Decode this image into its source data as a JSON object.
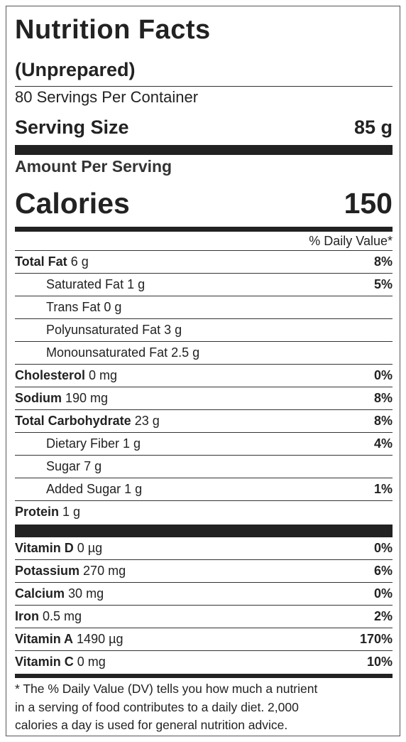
{
  "header": {
    "title": "Nutrition Facts",
    "subtitle": "(Unprepared)",
    "servings": "80 Servings Per Container",
    "serving_size_label": "Serving Size",
    "serving_size_value": "85 g"
  },
  "calories": {
    "amount_label": "Amount Per Serving",
    "label": "Calories",
    "value": "150"
  },
  "dv_header": "% Daily Value*",
  "nutrients": [
    {
      "name": "Total Fat",
      "amount": "6 g",
      "dv": "8%"
    },
    {
      "name": "Saturated Fat",
      "amount": "1 g",
      "dv": "5%",
      "indent": true
    },
    {
      "name": "Trans Fat",
      "amount": "0 g",
      "indent": true
    },
    {
      "name": "Polyunsaturated Fat",
      "amount": "3 g",
      "indent": true
    },
    {
      "name": "Monounsaturated Fat",
      "amount": "2.5 g",
      "indent": true
    },
    {
      "name": "Cholesterol",
      "amount": "0 mg",
      "dv": "0%"
    },
    {
      "name": "Sodium",
      "amount": "190 mg",
      "dv": "8%"
    },
    {
      "name": "Total Carbohydrate",
      "amount": "23 g",
      "dv": "8%"
    },
    {
      "name": "Dietary Fiber",
      "amount": "1 g",
      "dv": "4%",
      "indent": true
    },
    {
      "name": "Sugar",
      "amount": "7 g",
      "indent": true
    },
    {
      "name": "Added Sugar",
      "amount": "1 g",
      "dv": "1%",
      "indent": true
    },
    {
      "name": "Protein",
      "amount": "1 g"
    }
  ],
  "vitamins": [
    {
      "name": "Vitamin D",
      "amount": "0 µg",
      "dv": "0%"
    },
    {
      "name": "Potassium",
      "amount": "270 mg",
      "dv": "6%"
    },
    {
      "name": "Calcium",
      "amount": "30 mg",
      "dv": "0%"
    },
    {
      "name": "Iron",
      "amount": "0.5 mg",
      "dv": "2%"
    },
    {
      "name": "Vitamin A",
      "amount": "1490 µg",
      "dv": "170%"
    },
    {
      "name": "Vitamin C",
      "amount": "0 mg",
      "dv": "10%"
    }
  ],
  "footnote": [
    "* The % Daily Value (DV) tells you how much a nutrient",
    "in a serving of food contributes to a daily diet. 2,000",
    "calories a day is used for general nutrition advice."
  ]
}
